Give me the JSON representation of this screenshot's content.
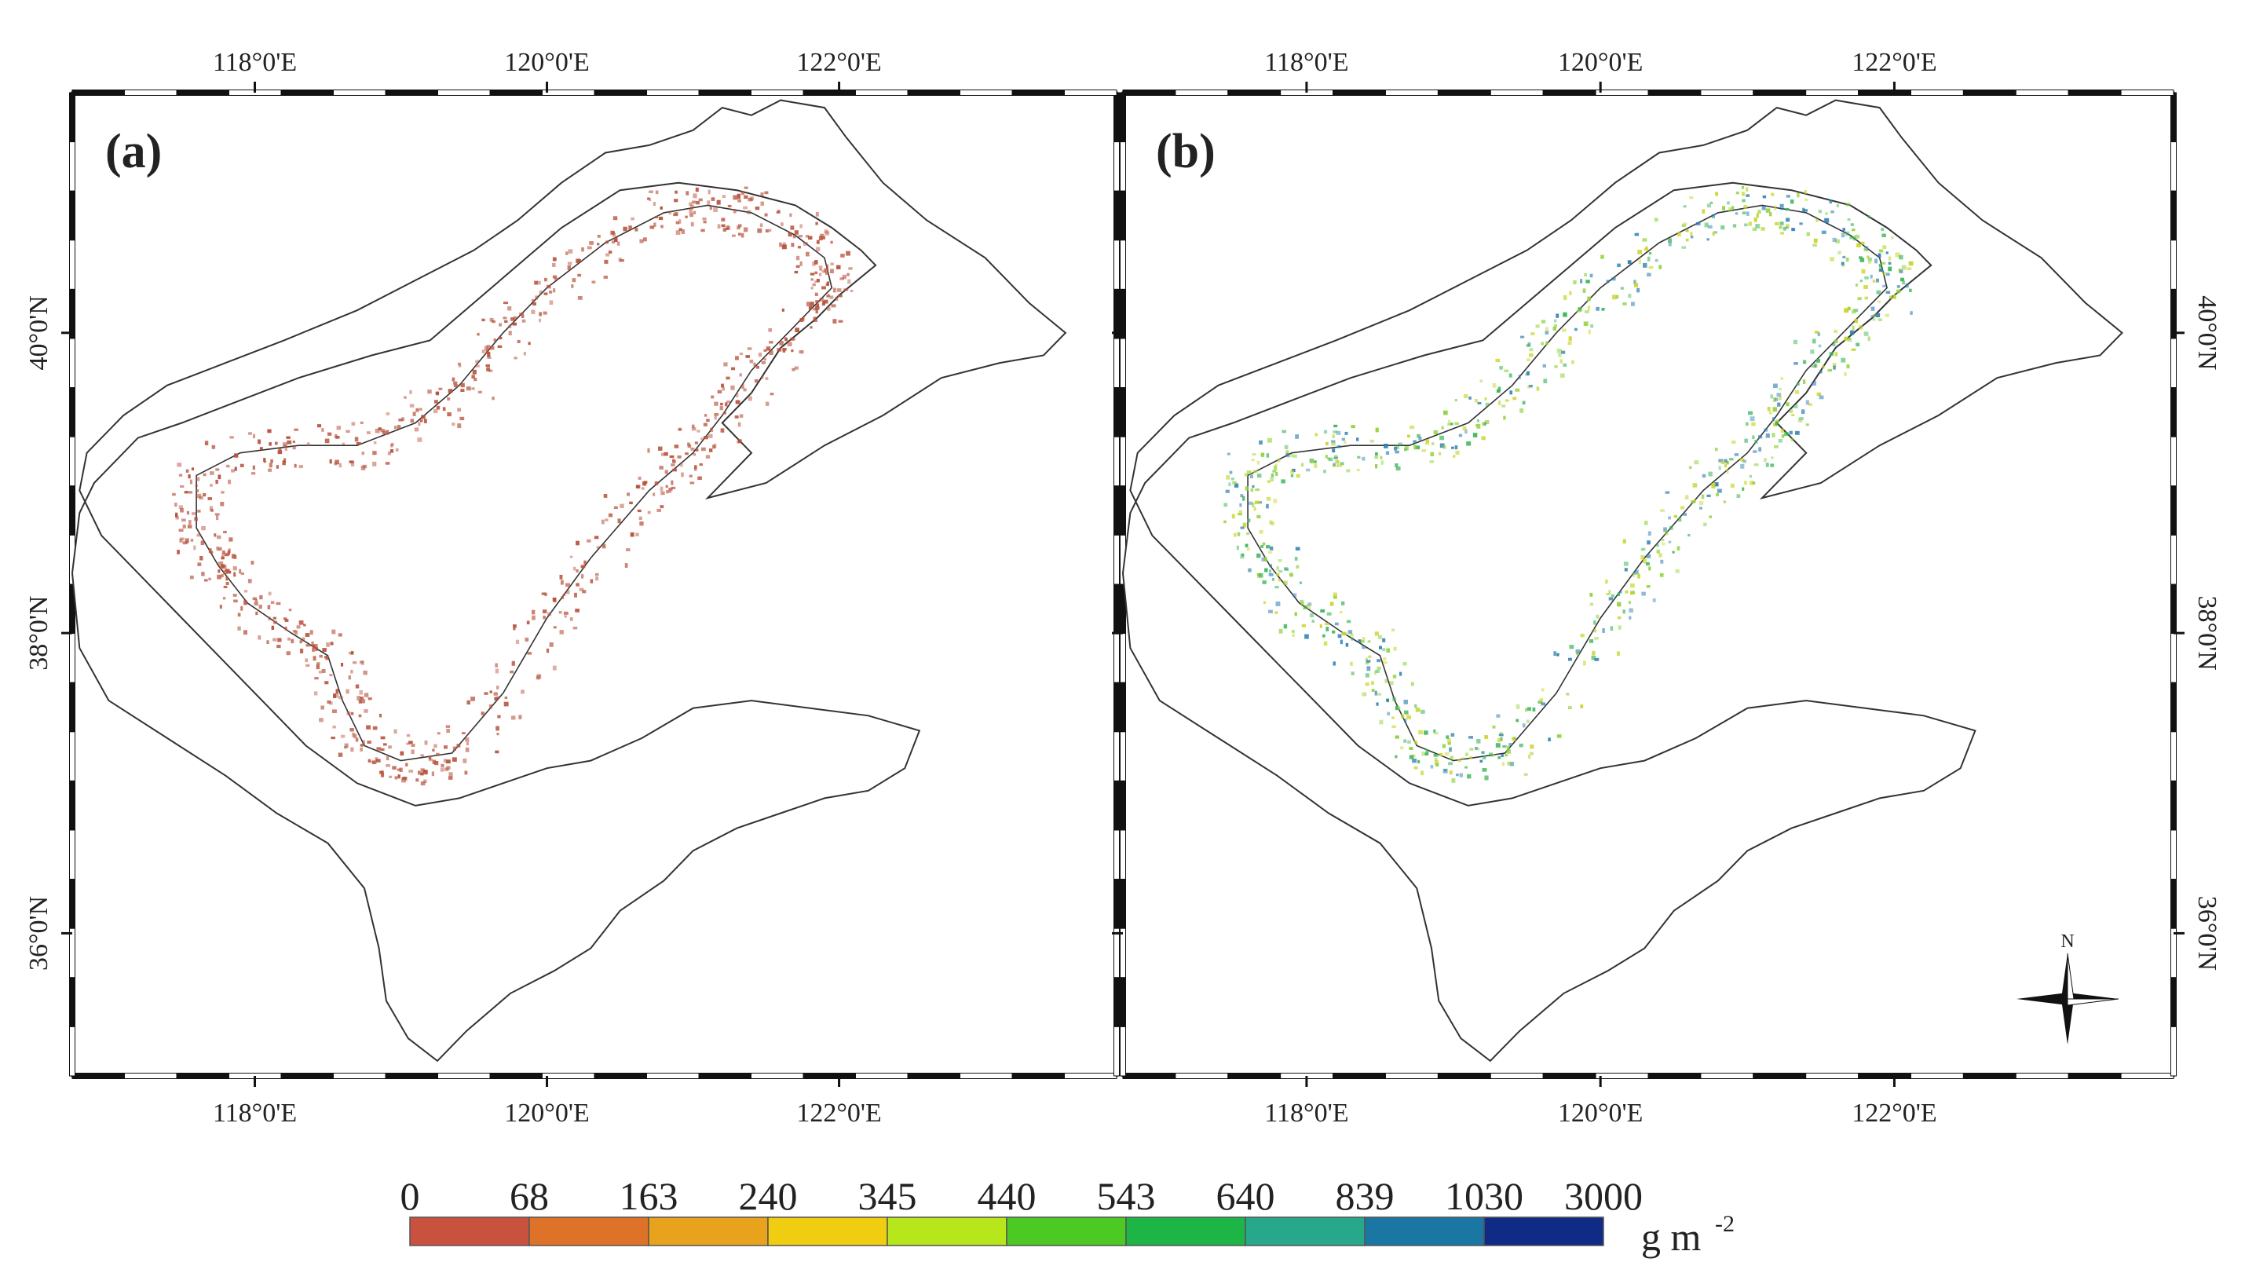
{
  "panels": [
    {
      "label": "(a)",
      "shows": "red-brown density pixels"
    },
    {
      "label": "(b)",
      "shows": "green-yellow-blue density pixels",
      "north_arrow": "N"
    }
  ],
  "axes": {
    "lon_ticks": [
      "118°0'E",
      "120°0'E",
      "122°0'E"
    ],
    "lat_ticks": [
      "40°0'N",
      "38°0'N",
      "36°0'N"
    ]
  },
  "legend": {
    "breaks": [
      "0",
      "68",
      "163",
      "240",
      "345",
      "440",
      "543",
      "640",
      "839",
      "1030",
      "3000"
    ],
    "colors": [
      "#c9523f",
      "#dd7228",
      "#e8a21c",
      "#f1cd12",
      "#b7e61b",
      "#4cc922",
      "#1db646",
      "#28a88a",
      "#1a77a4",
      "#102b86"
    ],
    "unit": "g m",
    "unit_exponent": "-2"
  },
  "colors": {
    "panel_a_pixels": "#b5503a",
    "panel_b_pixels": [
      "#8fd23a",
      "#c9d52a",
      "#3bb558",
      "#2f7fb0"
    ],
    "outline": "#333333"
  }
}
